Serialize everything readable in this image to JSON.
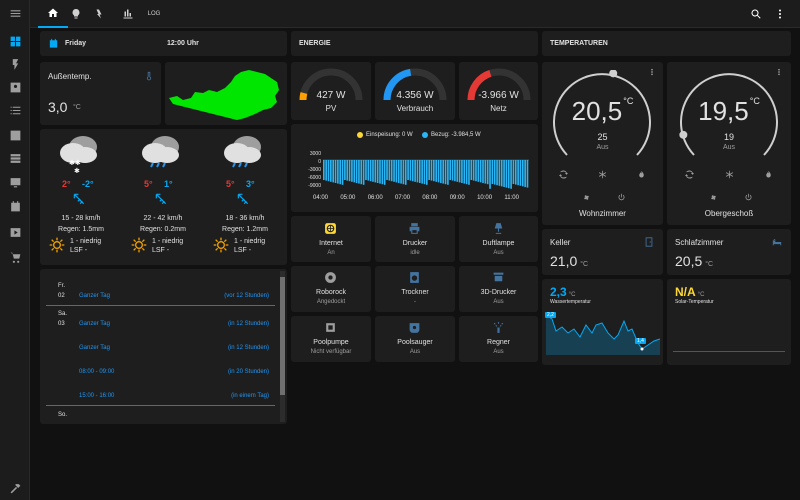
{
  "nav_tabs": [
    {
      "icon": "home-icon"
    },
    {
      "icon": "lightbulb-icon"
    },
    {
      "icon": "flash-icon"
    },
    {
      "icon": "bar-chart-icon"
    },
    {
      "label": "LOG"
    }
  ],
  "date_card": {
    "day": "Friday",
    "time": "12:00 Uhr"
  },
  "outside": {
    "label": "Außentemp.",
    "value": "3,0",
    "unit": "°C"
  },
  "forecast": [
    {
      "hi": "2°",
      "lo": "-2°",
      "wind": "15 - 28 km/h",
      "rain": "Regen: 1.5mm",
      "uv": "1 - niedrig",
      "lsf": "LSF -",
      "icon": "snow-cloud-icon"
    },
    {
      "hi": "5°",
      "lo": "1°",
      "wind": "22 - 42 km/h",
      "rain": "Regen: 0.2mm",
      "uv": "1 - niedrig",
      "lsf": "LSF -",
      "icon": "rain-cloud-icon"
    },
    {
      "hi": "5°",
      "lo": "3°",
      "wind": "18 - 36 km/h",
      "rain": "Regen: 1.2mm",
      "uv": "1 - niedrig",
      "lsf": "LSF -",
      "icon": "rain-cloud-icon"
    }
  ],
  "calendar": {
    "days": [
      {
        "wd": "Fr.",
        "num": "02",
        "events": [
          {
            "title": "Ganzer Tag",
            "rel": "(vor 12 Stunden)"
          }
        ]
      },
      {
        "wd": "Sa.",
        "num": "03",
        "events": [
          {
            "title": "Ganzer Tag",
            "rel": "(in 12 Stunden)"
          },
          {
            "title": "Ganzer Tag",
            "rel": "(in 12 Stunden)"
          },
          {
            "title": "08:00 - 09:00",
            "rel": "(in 20 Stunden)"
          },
          {
            "title": "15:00 - 16:00",
            "rel": "(in einem Tag)"
          }
        ]
      },
      {
        "wd": "So.",
        "num": "",
        "events": []
      }
    ]
  },
  "energy": {
    "title": "ENERGIE",
    "gauges": [
      {
        "value": "427 W",
        "label": "PV",
        "color": "#ffa000",
        "fraction": 0.08
      },
      {
        "value": "4.356 W",
        "label": "Verbrauch",
        "color": "#2196f3",
        "fraction": 0.45
      },
      {
        "value": "-3.966 W",
        "label": "Netz",
        "color": "#e53935",
        "fraction": 0.4
      }
    ],
    "legend": [
      {
        "text": "Einspeisung: 0 W",
        "color": "#fdd835"
      },
      {
        "text": "Bezug: -3.984,5 W",
        "color": "#29b6f6"
      }
    ],
    "y_ticks": [
      "3000",
      "0",
      "-3000",
      "-6000",
      "-9000"
    ],
    "x_ticks": [
      "04:00",
      "05:00",
      "06:00",
      "07:00",
      "08:00",
      "09:00",
      "10:00",
      "11:00"
    ]
  },
  "buttons": [
    {
      "name": "Internet",
      "state": "An",
      "icon": "web-icon",
      "color": "#fdd835"
    },
    {
      "name": "Drucker",
      "state": "idle",
      "icon": "printer-icon",
      "color": "#44739e"
    },
    {
      "name": "Duftlampe",
      "state": "Aus",
      "icon": "lamp-icon",
      "color": "#44739e"
    },
    {
      "name": "Roborock",
      "state": "Angedockt",
      "icon": "robot-vacuum-icon",
      "color": "#9e9e9e"
    },
    {
      "name": "Trockner",
      "state": "-",
      "icon": "tumble-dryer-icon",
      "color": "#44739e"
    },
    {
      "name": "3D-Drucker",
      "state": "Aus",
      "icon": "printer-3d-icon",
      "color": "#44739e"
    },
    {
      "name": "Poolpumpe",
      "state": "Nicht verfügbar",
      "icon": "pump-icon",
      "color": "#9e9e9e"
    },
    {
      "name": "Poolsauger",
      "state": "Aus",
      "icon": "pool-cleaner-icon",
      "color": "#44739e"
    },
    {
      "name": "Regner",
      "state": "Aus",
      "icon": "sprinkler-icon",
      "color": "#44739e"
    }
  ],
  "temperatures": {
    "title": "TEMPERATUREN",
    "thermostats": [
      {
        "current": "20,5",
        "unit": "°C",
        "target": "25",
        "mode": "Aus",
        "name": "Wohnzimmer",
        "fraction": 0.55
      },
      {
        "current": "19,5",
        "unit": "°C",
        "target": "19",
        "mode": "Aus",
        "name": "Obergeschoß",
        "fraction": 0.1
      }
    ],
    "sensors": [
      {
        "label": "Keller",
        "value": "21,0",
        "unit": "°C",
        "icon": "door-icon"
      },
      {
        "label": "Schlafzimmer",
        "value": "20,5",
        "unit": "°C",
        "icon": "bed-icon"
      }
    ],
    "graphs": [
      {
        "value": "2,3",
        "unit": "°C",
        "label": "Wassertemperatur",
        "color": "#03a9f4",
        "max": "2,2",
        "min": "1,4"
      },
      {
        "value": "N/A",
        "unit": "°C",
        "label": "Solar-Temperatur",
        "color": "#fdd835"
      }
    ]
  },
  "colors": {
    "accent": "#03a9f4",
    "card": "#1e1e1e",
    "map_green": "#00e600",
    "hi_red": "#e53935"
  }
}
